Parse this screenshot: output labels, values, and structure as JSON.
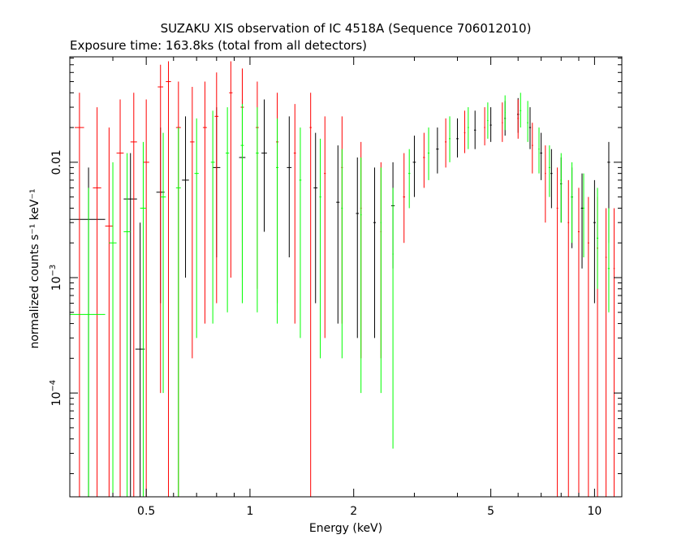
{
  "chart_data": {
    "type": "scatter",
    "title": "SUZAKU XIS observation of IC 4518A (Sequence 706012010)",
    "subtitle": "Exposure time: 163.8ks (total from all detectors)",
    "xlabel": "Energy (keV)",
    "ylabel": "normalized counts s⁻¹ keV⁻¹",
    "xscale": "log",
    "yscale": "log",
    "xlim": [
      0.3,
      12
    ],
    "ylim": [
      1.26e-05,
      0.082
    ],
    "grid": false,
    "x_ticks": [
      {
        "value": 0.5,
        "label": "0.5"
      },
      {
        "value": 1,
        "label": "1"
      },
      {
        "value": 2,
        "label": "2"
      },
      {
        "value": 5,
        "label": "5"
      },
      {
        "value": 10,
        "label": "10"
      }
    ],
    "y_ticks": [
      {
        "value": 0.01,
        "label": "0.01"
      },
      {
        "value": 0.001,
        "label": "10",
        "exp": "−3"
      },
      {
        "value": 0.0001,
        "label": "10",
        "exp": "−4"
      }
    ],
    "series": [
      {
        "color": "#000000",
        "points": [
          {
            "x": 0.34,
            "y": 0.0032,
            "xerr": 0.04,
            "ylo": 1.26e-05,
            "yhi": 0.009
          },
          {
            "x": 0.45,
            "y": 0.0048,
            "xerr": 0.02,
            "ylo": 1.26e-05,
            "yhi": 0.012
          },
          {
            "x": 0.48,
            "y": 0.00024,
            "xerr": 0.015,
            "ylo": 1.26e-05,
            "yhi": 0.003
          },
          {
            "x": 0.55,
            "y": 0.0055,
            "xerr": 0.015,
            "ylo": 0.0006,
            "yhi": 0.02
          },
          {
            "x": 0.65,
            "y": 0.007,
            "xerr": 0.015,
            "ylo": 0.001,
            "yhi": 0.025
          },
          {
            "x": 0.8,
            "y": 0.009,
            "xerr": 0.02,
            "ylo": 0.0015,
            "yhi": 0.03
          },
          {
            "x": 0.95,
            "y": 0.011,
            "xerr": 0.02,
            "ylo": 0.002,
            "yhi": 0.035
          },
          {
            "x": 1.1,
            "y": 0.012,
            "xerr": 0.02,
            "ylo": 0.0025,
            "yhi": 0.035
          },
          {
            "x": 1.3,
            "y": 0.009,
            "xerr": 0.02,
            "ylo": 0.0015,
            "yhi": 0.025
          },
          {
            "x": 1.55,
            "y": 0.006,
            "xerr": 0.02,
            "ylo": 0.0006,
            "yhi": 0.018
          },
          {
            "x": 1.8,
            "y": 0.0045,
            "xerr": 0.02,
            "ylo": 0.0004,
            "yhi": 0.014
          },
          {
            "x": 2.05,
            "y": 0.0036,
            "xerr": 0.02,
            "ylo": 0.0003,
            "yhi": 0.011
          },
          {
            "x": 2.3,
            "y": 0.003,
            "xerr": 0.02,
            "ylo": 0.0003,
            "yhi": 0.009
          },
          {
            "x": 2.6,
            "y": 0.0042,
            "xerr": 0.03,
            "ylo": 0.0012,
            "yhi": 0.01
          },
          {
            "x": 3.0,
            "y": 0.01,
            "xerr": 0.03,
            "ylo": 0.005,
            "yhi": 0.017
          },
          {
            "x": 3.5,
            "y": 0.013,
            "xerr": 0.03,
            "ylo": 0.008,
            "yhi": 0.02
          },
          {
            "x": 4.0,
            "y": 0.016,
            "xerr": 0.03,
            "ylo": 0.011,
            "yhi": 0.024
          },
          {
            "x": 4.5,
            "y": 0.019,
            "xerr": 0.03,
            "ylo": 0.013,
            "yhi": 0.028
          },
          {
            "x": 5.0,
            "y": 0.021,
            "xerr": 0.03,
            "ylo": 0.015,
            "yhi": 0.03
          },
          {
            "x": 5.5,
            "y": 0.024,
            "xerr": 0.03,
            "ylo": 0.017,
            "yhi": 0.034
          },
          {
            "x": 6.0,
            "y": 0.026,
            "xerr": 0.04,
            "ylo": 0.018,
            "yhi": 0.036
          },
          {
            "x": 6.5,
            "y": 0.02,
            "xerr": 0.04,
            "ylo": 0.013,
            "yhi": 0.03
          },
          {
            "x": 7.0,
            "y": 0.012,
            "xerr": 0.05,
            "ylo": 0.007,
            "yhi": 0.018
          },
          {
            "x": 7.5,
            "y": 0.008,
            "xerr": 0.05,
            "ylo": 0.004,
            "yhi": 0.013
          },
          {
            "x": 8.0,
            "y": 0.0065,
            "xerr": 0.05,
            "ylo": 0.003,
            "yhi": 0.011
          },
          {
            "x": 8.6,
            "y": 0.005,
            "xerr": 0.06,
            "ylo": 0.0018,
            "yhi": 0.009
          },
          {
            "x": 9.2,
            "y": 0.004,
            "xerr": 0.07,
            "ylo": 0.0012,
            "yhi": 0.008
          },
          {
            "x": 10.0,
            "y": 0.003,
            "xerr": 0.08,
            "ylo": 0.0006,
            "yhi": 0.007
          },
          {
            "x": 11.0,
            "y": 0.01,
            "xerr": 0.1,
            "ylo": 0.002,
            "yhi": 0.015
          }
        ]
      },
      {
        "color": "#ff0000",
        "points": [
          {
            "x": 0.32,
            "y": 0.02,
            "xerr": 0.01,
            "ylo": 1.26e-05,
            "yhi": 0.04
          },
          {
            "x": 0.36,
            "y": 0.006,
            "xerr": 0.01,
            "ylo": 1.26e-05,
            "yhi": 0.03
          },
          {
            "x": 0.39,
            "y": 0.0028,
            "xerr": 0.01,
            "ylo": 1.26e-05,
            "yhi": 0.02
          },
          {
            "x": 0.42,
            "y": 0.012,
            "xerr": 0.01,
            "ylo": 1.26e-05,
            "yhi": 0.035
          },
          {
            "x": 0.46,
            "y": 0.015,
            "xerr": 0.01,
            "ylo": 1.26e-05,
            "yhi": 0.04
          },
          {
            "x": 0.5,
            "y": 0.01,
            "xerr": 0.01,
            "ylo": 1.26e-05,
            "yhi": 0.035
          },
          {
            "x": 0.55,
            "y": 0.045,
            "xerr": 0.01,
            "ylo": 0.0001,
            "yhi": 0.07
          },
          {
            "x": 0.58,
            "y": 0.05,
            "xerr": 0.01,
            "ylo": 1.26e-05,
            "yhi": 0.075
          },
          {
            "x": 0.62,
            "y": 0.02,
            "xerr": 0.01,
            "ylo": 1.26e-05,
            "yhi": 0.05
          },
          {
            "x": 0.68,
            "y": 0.015,
            "xerr": 0.01,
            "ylo": 0.0002,
            "yhi": 0.045
          },
          {
            "x": 0.74,
            "y": 0.02,
            "xerr": 0.01,
            "ylo": 0.0004,
            "yhi": 0.05
          },
          {
            "x": 0.8,
            "y": 0.025,
            "xerr": 0.01,
            "ylo": 0.0006,
            "yhi": 0.06
          },
          {
            "x": 0.88,
            "y": 0.04,
            "xerr": 0.01,
            "ylo": 0.001,
            "yhi": 0.075
          },
          {
            "x": 0.95,
            "y": 0.03,
            "xerr": 0.01,
            "ylo": 0.001,
            "yhi": 0.065
          },
          {
            "x": 1.05,
            "y": 0.02,
            "xerr": 0.01,
            "ylo": 0.0008,
            "yhi": 0.05
          },
          {
            "x": 1.2,
            "y": 0.015,
            "xerr": 0.01,
            "ylo": 0.0006,
            "yhi": 0.04
          },
          {
            "x": 1.35,
            "y": 0.012,
            "xerr": 0.01,
            "ylo": 0.0004,
            "yhi": 0.032
          },
          {
            "x": 1.5,
            "y": 0.02,
            "xerr": 0.01,
            "ylo": 1.26e-05,
            "yhi": 0.04
          },
          {
            "x": 1.65,
            "y": 0.008,
            "xerr": 0.01,
            "ylo": 0.0003,
            "yhi": 0.025
          },
          {
            "x": 1.85,
            "y": 0.009,
            "xerr": 0.01,
            "ylo": 0.0004,
            "yhi": 0.025
          },
          {
            "x": 2.1,
            "y": 0.004,
            "xerr": 0.01,
            "ylo": 0.0002,
            "yhi": 0.015
          },
          {
            "x": 2.4,
            "y": 0.0025,
            "xerr": 0.01,
            "ylo": 0.0002,
            "yhi": 0.01
          },
          {
            "x": 2.8,
            "y": 0.005,
            "xerr": 0.02,
            "ylo": 0.002,
            "yhi": 0.012
          },
          {
            "x": 3.2,
            "y": 0.011,
            "xerr": 0.02,
            "ylo": 0.006,
            "yhi": 0.018
          },
          {
            "x": 3.7,
            "y": 0.015,
            "xerr": 0.02,
            "ylo": 0.009,
            "yhi": 0.024
          },
          {
            "x": 4.2,
            "y": 0.018,
            "xerr": 0.02,
            "ylo": 0.012,
            "yhi": 0.028
          },
          {
            "x": 4.8,
            "y": 0.02,
            "xerr": 0.02,
            "ylo": 0.014,
            "yhi": 0.03
          },
          {
            "x": 5.4,
            "y": 0.022,
            "xerr": 0.02,
            "ylo": 0.015,
            "yhi": 0.033
          },
          {
            "x": 6.0,
            "y": 0.024,
            "xerr": 0.03,
            "ylo": 0.016,
            "yhi": 0.035
          },
          {
            "x": 6.6,
            "y": 0.014,
            "xerr": 0.03,
            "ylo": 0.008,
            "yhi": 0.022
          },
          {
            "x": 7.2,
            "y": 0.008,
            "xerr": 0.03,
            "ylo": 0.003,
            "yhi": 0.014
          },
          {
            "x": 7.8,
            "y": 0.004,
            "xerr": 0.04,
            "ylo": 1.26e-05,
            "yhi": 0.009
          },
          {
            "x": 8.4,
            "y": 0.003,
            "xerr": 0.04,
            "ylo": 1.26e-05,
            "yhi": 0.007
          },
          {
            "x": 9.0,
            "y": 0.0025,
            "xerr": 0.05,
            "ylo": 1.26e-05,
            "yhi": 0.006
          },
          {
            "x": 9.6,
            "y": 0.002,
            "xerr": 0.05,
            "ylo": 1.26e-05,
            "yhi": 0.005
          },
          {
            "x": 10.2,
            "y": 0.0018,
            "xerr": 0.05,
            "ylo": 1.26e-05,
            "yhi": 0.005
          },
          {
            "x": 10.8,
            "y": 0.0015,
            "xerr": 0.05,
            "ylo": 1.26e-05,
            "yhi": 0.004
          },
          {
            "x": 11.4,
            "y": 0.0012,
            "xerr": 0.05,
            "ylo": 1.26e-05,
            "yhi": 0.004
          }
        ]
      },
      {
        "color": "#00ff00",
        "points": [
          {
            "x": 0.34,
            "y": 0.00048,
            "xerr": 0.04,
            "ylo": 1.26e-05,
            "yhi": 0.006
          },
          {
            "x": 0.4,
            "y": 0.002,
            "xerr": 0.01,
            "ylo": 1.26e-05,
            "yhi": 0.01
          },
          {
            "x": 0.44,
            "y": 0.0025,
            "xerr": 0.01,
            "ylo": 1.26e-05,
            "yhi": 0.012
          },
          {
            "x": 0.49,
            "y": 0.004,
            "xerr": 0.01,
            "ylo": 1.26e-05,
            "yhi": 0.015
          },
          {
            "x": 0.56,
            "y": 0.005,
            "xerr": 0.01,
            "ylo": 0.0001,
            "yhi": 0.018
          },
          {
            "x": 0.62,
            "y": 0.006,
            "xerr": 0.01,
            "ylo": 1.26e-05,
            "yhi": 0.02
          },
          {
            "x": 0.7,
            "y": 0.008,
            "xerr": 0.01,
            "ylo": 0.0003,
            "yhi": 0.024
          },
          {
            "x": 0.78,
            "y": 0.01,
            "xerr": 0.01,
            "ylo": 0.0004,
            "yhi": 0.028
          },
          {
            "x": 0.86,
            "y": 0.012,
            "xerr": 0.01,
            "ylo": 0.0005,
            "yhi": 0.03
          },
          {
            "x": 0.95,
            "y": 0.014,
            "xerr": 0.01,
            "ylo": 0.0006,
            "yhi": 0.032
          },
          {
            "x": 1.05,
            "y": 0.012,
            "xerr": 0.01,
            "ylo": 0.0005,
            "yhi": 0.03
          },
          {
            "x": 1.2,
            "y": 0.009,
            "xerr": 0.01,
            "ylo": 0.0004,
            "yhi": 0.024
          },
          {
            "x": 1.4,
            "y": 0.007,
            "xerr": 0.01,
            "ylo": 0.0003,
            "yhi": 0.02
          },
          {
            "x": 1.6,
            "y": 0.005,
            "xerr": 0.01,
            "ylo": 0.0002,
            "yhi": 0.016
          },
          {
            "x": 1.85,
            "y": 0.004,
            "xerr": 0.01,
            "ylo": 0.0002,
            "yhi": 0.013
          },
          {
            "x": 2.1,
            "y": 0.0035,
            "xerr": 0.01,
            "ylo": 0.0001,
            "yhi": 0.011
          },
          {
            "x": 2.4,
            "y": 0.003,
            "xerr": 0.01,
            "ylo": 0.0001,
            "yhi": 0.009
          },
          {
            "x": 2.6,
            "y": 0.0016,
            "xerr": 0.01,
            "ylo": 3.3e-05,
            "yhi": 0.006
          },
          {
            "x": 2.9,
            "y": 0.008,
            "xerr": 0.02,
            "ylo": 0.004,
            "yhi": 0.013
          },
          {
            "x": 3.3,
            "y": 0.012,
            "xerr": 0.02,
            "ylo": 0.007,
            "yhi": 0.02
          },
          {
            "x": 3.8,
            "y": 0.016,
            "xerr": 0.02,
            "ylo": 0.01,
            "yhi": 0.025
          },
          {
            "x": 4.3,
            "y": 0.02,
            "xerr": 0.02,
            "ylo": 0.013,
            "yhi": 0.03
          },
          {
            "x": 4.9,
            "y": 0.023,
            "xerr": 0.02,
            "ylo": 0.016,
            "yhi": 0.033
          },
          {
            "x": 5.5,
            "y": 0.027,
            "xerr": 0.02,
            "ylo": 0.019,
            "yhi": 0.038
          },
          {
            "x": 6.1,
            "y": 0.028,
            "xerr": 0.03,
            "ylo": 0.02,
            "yhi": 0.04
          },
          {
            "x": 6.4,
            "y": 0.022,
            "xerr": 0.03,
            "ylo": 0.015,
            "yhi": 0.034
          },
          {
            "x": 6.9,
            "y": 0.013,
            "xerr": 0.03,
            "ylo": 0.008,
            "yhi": 0.02
          },
          {
            "x": 7.4,
            "y": 0.009,
            "xerr": 0.04,
            "ylo": 0.005,
            "yhi": 0.014
          },
          {
            "x": 8.0,
            "y": 0.007,
            "xerr": 0.04,
            "ylo": 0.003,
            "yhi": 0.012
          },
          {
            "x": 8.6,
            "y": 0.005,
            "xerr": 0.05,
            "ylo": 0.002,
            "yhi": 0.01
          },
          {
            "x": 9.3,
            "y": 0.004,
            "xerr": 0.05,
            "ylo": 0.0015,
            "yhi": 0.008
          },
          {
            "x": 10.2,
            "y": 0.0022,
            "xerr": 0.06,
            "ylo": 0.0008,
            "yhi": 0.006
          },
          {
            "x": 11.0,
            "y": 0.0012,
            "xerr": 0.07,
            "ylo": 0.0005,
            "yhi": 0.004
          }
        ]
      }
    ]
  }
}
